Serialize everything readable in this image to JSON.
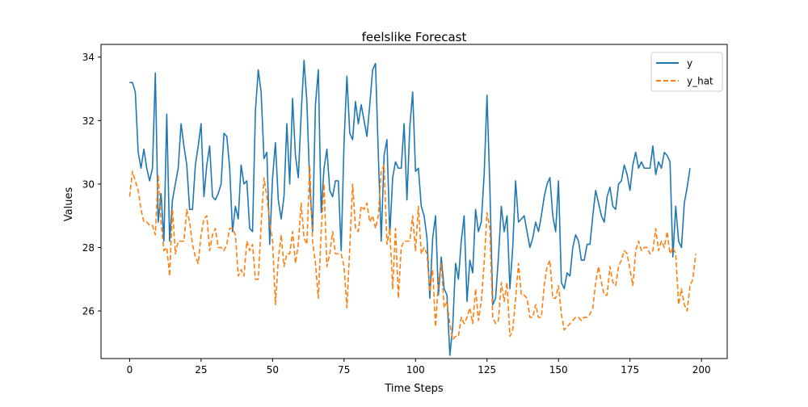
{
  "chart_data": {
    "type": "line",
    "title": "feelslike Forecast",
    "xlabel": "Time Steps",
    "ylabel": "Values",
    "xlim": [
      -10,
      209
    ],
    "ylim": [
      24.5,
      34.4
    ],
    "xticks": [
      0,
      25,
      50,
      75,
      100,
      125,
      150,
      175,
      200
    ],
    "yticks": [
      26,
      28,
      30,
      32,
      34
    ],
    "legend_position": "top-right",
    "grid": false,
    "series": [
      {
        "name": "y",
        "color": "#1f77b4",
        "style": "solid",
        "values": [
          33.2,
          33.2,
          32.9,
          31.0,
          30.5,
          31.1,
          30.5,
          30.1,
          30.5,
          33.5,
          28.8,
          29.7,
          28.2,
          32.2,
          28.2,
          29.5,
          30.0,
          30.5,
          31.9,
          31.2,
          30.6,
          29.2,
          29.2,
          30.6,
          31.2,
          31.9,
          29.6,
          30.6,
          31.2,
          29.6,
          29.5,
          29.7,
          30.0,
          31.6,
          31.5,
          30.5,
          28.5,
          29.3,
          28.9,
          30.6,
          30.0,
          30.1,
          28.6,
          28.5,
          32.3,
          33.6,
          32.9,
          30.8,
          31.0,
          28.1,
          30.2,
          31.3,
          29.5,
          28.9,
          29.6,
          31.9,
          30.0,
          32.7,
          30.9,
          30.2,
          32.2,
          33.9,
          32.6,
          30.0,
          28.5,
          32.5,
          33.6,
          29.1,
          30.5,
          31.1,
          29.8,
          29.6,
          30.1,
          30.1,
          27.9,
          31.3,
          33.4,
          31.6,
          31.4,
          32.6,
          31.9,
          32.5,
          32.0,
          31.5,
          32.5,
          33.6,
          33.8,
          30.9,
          28.2,
          30.9,
          31.4,
          28.4,
          30.2,
          30.7,
          30.5,
          30.5,
          31.9,
          29.5,
          31.8,
          32.9,
          30.4,
          30.5,
          29.3,
          29.0,
          28.3,
          26.4,
          28.3,
          29.0,
          26.5,
          27.7,
          26.7,
          26.5,
          24.6,
          25.5,
          27.5,
          27.0,
          28.2,
          29.0,
          26.3,
          27.6,
          27.2,
          29.2,
          28.5,
          28.8,
          30.3,
          32.8,
          29.9,
          26.2,
          26.4,
          27.7,
          29.3,
          28.5,
          29.0,
          26.7,
          28.0,
          30.1,
          28.8,
          28.9,
          29.0,
          28.5,
          28.0,
          28.3,
          28.8,
          28.5,
          29.0,
          29.6,
          30.0,
          30.2,
          29.0,
          28.5,
          30.1,
          26.9,
          26.7,
          27.2,
          27.1,
          28.0,
          28.4,
          28.2,
          27.6,
          27.6,
          28.1,
          28.1,
          29.0,
          29.8,
          29.4,
          29.0,
          28.8,
          29.6,
          29.9,
          29.3,
          29.2,
          30.0,
          30.1,
          30.6,
          30.3,
          29.8,
          30.6,
          31.0,
          30.5,
          30.7,
          30.5,
          30.5,
          30.5,
          31.2,
          30.3,
          30.7,
          30.5,
          31.0,
          30.9,
          30.7,
          27.7,
          29.3,
          28.2,
          28.0,
          29.4,
          29.9,
          30.5
        ]
      },
      {
        "name": "y_hat",
        "color": "#ff7f0e",
        "style": "dashed",
        "values": [
          29.6,
          30.4,
          30.1,
          29.8,
          29.2,
          28.8,
          28.8,
          28.7,
          28.7,
          28.4,
          30.3,
          28.8,
          27.9,
          28.0,
          27.1,
          29.2,
          27.8,
          28.2,
          28.2,
          28.2,
          29.2,
          28.8,
          28.1,
          27.7,
          27.5,
          28.4,
          28.9,
          29.0,
          27.9,
          28.4,
          28.6,
          28.0,
          28.0,
          27.9,
          28.1,
          28.6,
          28.6,
          28.4,
          27.1,
          27.3,
          27.1,
          28.2,
          27.9,
          28.1,
          27.0,
          27.0,
          28.7,
          30.2,
          29.6,
          28.8,
          28.2,
          26.2,
          27.6,
          28.4,
          27.4,
          27.8,
          27.8,
          28.5,
          27.5,
          28.1,
          29.4,
          28.3,
          28.1,
          30.6,
          28.2,
          27.5,
          26.4,
          28.5,
          30.0,
          27.4,
          27.8,
          28.5,
          27.8,
          27.8,
          27.8,
          27.4,
          26.1,
          28.0,
          30.0,
          28.6,
          28.5,
          29.3,
          29.2,
          29.4,
          28.8,
          29.0,
          28.6,
          29.0,
          30.4,
          30.6,
          28.1,
          28.6,
          26.7,
          28.6,
          26.4,
          28.0,
          28.2,
          28.2,
          28.2,
          29.0,
          27.9,
          29.3,
          27.8,
          28.0,
          27.8,
          26.6,
          27.3,
          25.5,
          26.9,
          27.5,
          26.1,
          26.3,
          25.6,
          25.1,
          25.2,
          25.2,
          25.8,
          25.6,
          25.8,
          26.1,
          25.6,
          26.7,
          25.7,
          26.3,
          27.5,
          29.1,
          28.6,
          25.8,
          25.6,
          25.7,
          26.9,
          26.3,
          26.9,
          25.2,
          25.4,
          26.4,
          27.5,
          26.5,
          26.5,
          26.4,
          25.8,
          25.8,
          26.2,
          25.8,
          25.8,
          26.8,
          27.4,
          27.6,
          26.4,
          26.4,
          26.8,
          25.9,
          25.4,
          25.5,
          25.6,
          25.7,
          25.8,
          25.8,
          25.7,
          25.8,
          25.8,
          25.9,
          26.1,
          26.9,
          27.4,
          26.9,
          26.5,
          26.5,
          27.4,
          26.9,
          26.8,
          27.4,
          27.6,
          27.9,
          27.8,
          27.3,
          26.8,
          27.9,
          28.2,
          27.9,
          28.0,
          28.0,
          27.8,
          27.9,
          28.6,
          27.9,
          28.2,
          28.0,
          28.5,
          27.8,
          28.0,
          27.8,
          26.2,
          26.7,
          26.2,
          26.0,
          26.8,
          27.0,
          27.8
        ]
      }
    ]
  }
}
